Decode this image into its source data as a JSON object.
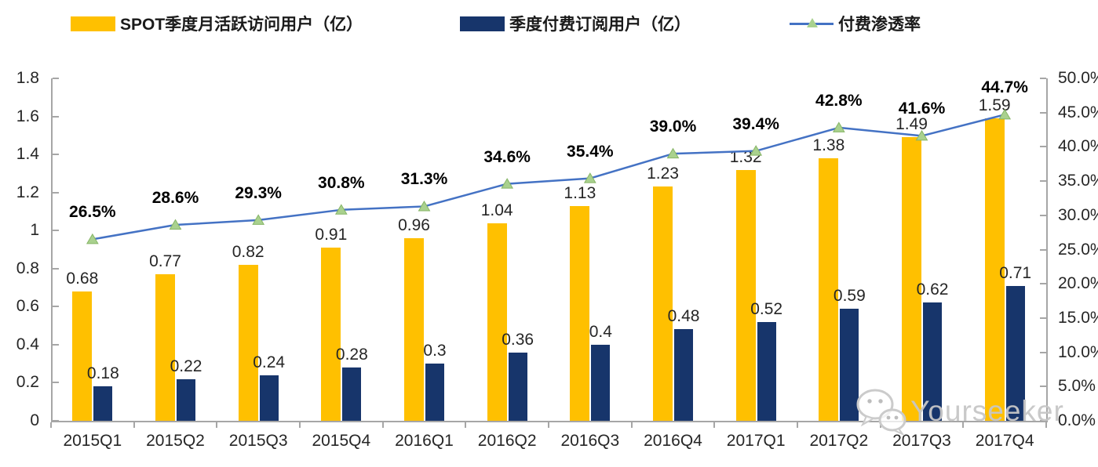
{
  "legend": {
    "items": [
      {
        "label": "SPOT季度月活跃访问用户（亿）",
        "swatch": "bar",
        "color": "#FFC000"
      },
      {
        "label": "季度付费订阅用户（亿）",
        "swatch": "bar",
        "color": "#17356B"
      },
      {
        "label": "付费渗透率",
        "swatch": "line",
        "color": "#4472C4",
        "marker_color": "#A9D18E"
      }
    ]
  },
  "chart_data": {
    "type": "bar",
    "categories": [
      "2015Q1",
      "2015Q2",
      "2015Q3",
      "2015Q4",
      "2016Q1",
      "2016Q2",
      "2016Q3",
      "2016Q4",
      "2017Q1",
      "2017Q2",
      "2017Q3",
      "2017Q4"
    ],
    "series": [
      {
        "name": "SPOT季度月活跃访问用户（亿）",
        "type": "bar",
        "axis": "left",
        "color": "#FFC000",
        "values": [
          0.68,
          0.77,
          0.82,
          0.91,
          0.96,
          1.04,
          1.13,
          1.23,
          1.32,
          1.38,
          1.49,
          1.59
        ],
        "labels": [
          "0.68",
          "0.77",
          "0.82",
          "0.91",
          "0.96",
          "1.04",
          "1.13",
          "1.23",
          "1.32",
          "1.38",
          "1.49",
          "1.59"
        ]
      },
      {
        "name": "季度付费订阅用户（亿）",
        "type": "bar",
        "axis": "left",
        "color": "#17356B",
        "values": [
          0.18,
          0.22,
          0.24,
          0.28,
          0.3,
          0.36,
          0.4,
          0.48,
          0.52,
          0.59,
          0.62,
          0.71
        ],
        "labels": [
          "0.18",
          "0.22",
          "0.24",
          "0.28",
          "0.3",
          "0.36",
          "0.4",
          "0.48",
          "0.52",
          "0.59",
          "0.62",
          "0.71"
        ]
      },
      {
        "name": "付费渗透率",
        "type": "line",
        "axis": "right",
        "color": "#4472C4",
        "marker": "triangle",
        "marker_color": "#A9D18E",
        "values": [
          26.5,
          28.6,
          29.3,
          30.8,
          31.3,
          34.6,
          35.4,
          39.0,
          39.4,
          42.8,
          41.6,
          44.7
        ],
        "labels": [
          "26.5%",
          "28.6%",
          "29.3%",
          "30.8%",
          "31.3%",
          "34.6%",
          "35.4%",
          "39.0%",
          "39.4%",
          "42.8%",
          "41.6%",
          "44.7%"
        ]
      }
    ],
    "left_axis": {
      "min": 0,
      "max": 1.8,
      "step": 0.2,
      "ticks": [
        "0",
        "0.2",
        "0.4",
        "0.6",
        "0.8",
        "1",
        "1.2",
        "1.4",
        "1.6",
        "1.8"
      ]
    },
    "right_axis": {
      "min": 0,
      "max": 50,
      "step": 5,
      "ticks": [
        "0.0%",
        "5.0%",
        "10.0%",
        "15.0%",
        "20.0%",
        "25.0%",
        "30.0%",
        "35.0%",
        "40.0%",
        "45.0%",
        "50.0%"
      ]
    },
    "legend_position": "top",
    "grid": false
  },
  "watermark": {
    "text": "Yourseeker",
    "icon": "wechat-icon"
  },
  "colors": {
    "axis": "#A6A6A6",
    "text": "#262626",
    "percent_label": "#000000",
    "watermark": "#C8C8C8"
  }
}
